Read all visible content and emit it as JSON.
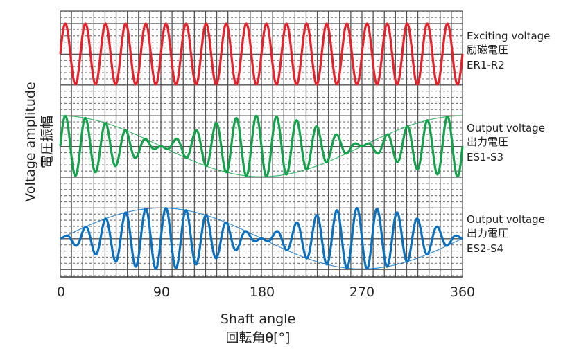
{
  "chart_data": {
    "type": "line",
    "title": "",
    "xlabel": "Shaft angle",
    "xlabel_jp": "回転角θ[°]",
    "ylabel": "Voltage amplitude",
    "ylabel_jp": "電圧振幅",
    "xlim": [
      0,
      360
    ],
    "x_ticks": [
      "0",
      "90",
      "180",
      "270",
      "360"
    ],
    "carrier_cycles": 20,
    "grid": true,
    "series": [
      {
        "name": "Exciting voltage",
        "name_jp": "励磁電圧",
        "terminal": "ER1-R2",
        "formula": "sin(20θ)",
        "envelope": "none",
        "color": "#e8212a"
      },
      {
        "name": "Output voltage",
        "name_jp": "出力電圧",
        "terminal": "ES1-S3",
        "formula": "cos(θ)·sin(20θ)",
        "envelope": "cos(θ)",
        "color": "#14a24c"
      },
      {
        "name": "Output voltage",
        "name_jp": "出力電圧",
        "terminal": "ES2-S4",
        "formula": "sin(θ)·sin(20θ)",
        "envelope": "sin(θ)",
        "color": "#0a70c0"
      }
    ]
  }
}
